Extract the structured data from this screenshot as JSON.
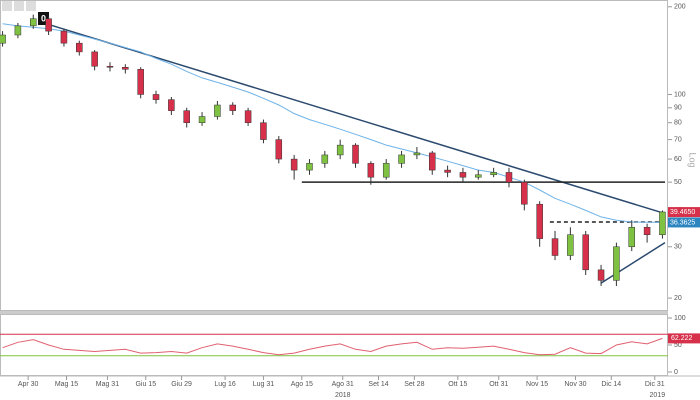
{
  "chart_data": {
    "type": "candlestick",
    "toolbar_badge": "0",
    "scale_label": "Log",
    "log_scale": true,
    "x": [
      "2018-04-20",
      "2018-04-26",
      "2018-05-02",
      "2018-05-08",
      "2018-05-14",
      "2018-05-20",
      "2018-05-26",
      "2018-06-01",
      "2018-06-07",
      "2018-06-13",
      "2018-06-19",
      "2018-06-25",
      "2018-07-01",
      "2018-07-07",
      "2018-07-13",
      "2018-07-19",
      "2018-07-25",
      "2018-07-31",
      "2018-08-06",
      "2018-08-12",
      "2018-08-18",
      "2018-08-24",
      "2018-08-30",
      "2018-09-05",
      "2018-09-11",
      "2018-09-17",
      "2018-09-23",
      "2018-09-29",
      "2018-10-05",
      "2018-10-11",
      "2018-10-17",
      "2018-10-23",
      "2018-10-29",
      "2018-11-04",
      "2018-11-10",
      "2018-11-16",
      "2018-11-22",
      "2018-11-28",
      "2018-12-04",
      "2018-12-10",
      "2018-12-16",
      "2018-12-22",
      "2018-12-28",
      "2019-01-03"
    ],
    "open": [
      150,
      160,
      172,
      182,
      165,
      150,
      140,
      125,
      124,
      122,
      100,
      96,
      88,
      80,
      84,
      92,
      88,
      80,
      70,
      60,
      55,
      58,
      62,
      67,
      58,
      52,
      58,
      62,
      63,
      55,
      54,
      52,
      53,
      54,
      50,
      42,
      32,
      28,
      33,
      25,
      23,
      30,
      35,
      33
    ],
    "high": [
      165,
      176,
      188,
      185,
      168,
      153,
      142,
      129,
      127,
      124,
      103,
      98,
      90,
      87,
      95,
      94,
      90,
      82,
      72,
      62,
      60,
      64,
      70,
      68,
      59,
      60,
      64,
      66,
      64,
      57,
      56,
      55,
      56,
      56,
      51,
      43,
      34,
      35,
      34,
      26,
      31,
      37,
      36,
      40
    ],
    "low": [
      146,
      156,
      168,
      160,
      146,
      136,
      121,
      120,
      118,
      97,
      93,
      85,
      77,
      78,
      82,
      85,
      78,
      68,
      58,
      51,
      53,
      56,
      60,
      56,
      49,
      51,
      56,
      60,
      53,
      52,
      50,
      51,
      52,
      48,
      40,
      30,
      27,
      27,
      24,
      22,
      22,
      29,
      31,
      32
    ],
    "close": [
      160,
      172,
      182,
      165,
      150,
      140,
      125,
      124,
      122,
      100,
      96,
      88,
      80,
      84,
      92,
      88,
      80,
      70,
      60,
      55,
      58,
      62,
      67,
      58,
      52,
      58,
      62,
      63,
      55,
      54,
      52,
      53,
      54,
      50,
      42,
      32,
      28,
      33,
      25,
      23,
      30,
      35,
      33,
      39.5
    ],
    "up_color": "#7fc241",
    "down_color": "#d6304a",
    "ma": {
      "color": "#6fb3e8",
      "values": [
        175,
        172,
        170,
        168,
        165,
        160,
        155,
        150,
        145,
        140,
        133,
        127,
        120,
        114,
        110,
        106,
        102,
        97,
        92,
        86,
        82,
        79,
        76,
        73,
        70,
        67,
        65,
        63,
        61,
        59,
        57,
        55,
        54,
        52,
        50,
        47,
        44,
        42,
        40,
        38,
        37,
        36.5,
        36.4,
        36.3625
      ]
    },
    "trendlines": [
      {
        "x": [
          "2018-05-07",
          "2019-01-04"
        ],
        "y": [
          175,
          39
        ],
        "color": "#2b4a6f",
        "dash": false
      },
      {
        "x": [
          "2018-08-15",
          "2019-01-04"
        ],
        "y": [
          50,
          50
        ],
        "color": "#222222",
        "dash": false
      },
      {
        "x": [
          "2018-11-20",
          "2019-01-04"
        ],
        "y": [
          36.5,
          36.5
        ],
        "color": "#222222",
        "dash": true
      },
      {
        "x": [
          "2018-12-10",
          "2019-01-04"
        ],
        "y": [
          22.5,
          31
        ],
        "color": "#2b4a6f",
        "dash": false
      }
    ],
    "price_tags": [
      {
        "value": 39.465,
        "label": "39.4650",
        "color": "#d6304a"
      },
      {
        "value": 36.3625,
        "label": "36.3625",
        "color": "#2e86c1"
      }
    ],
    "ylim": [
      18.2,
      211
    ],
    "yticks": [
      200,
      100,
      90,
      80,
      70,
      60,
      50,
      40,
      30,
      20
    ],
    "xlim": [
      "2018-04-19",
      "2019-01-04"
    ],
    "xticks": [
      {
        "value": "2018-04-30",
        "label": "Apr 30"
      },
      {
        "value": "2018-05-15",
        "label": "Mag 15"
      },
      {
        "value": "2018-05-31",
        "label": "Mag 31"
      },
      {
        "value": "2018-06-15",
        "label": "Giu 15"
      },
      {
        "value": "2018-06-29",
        "label": "Giu 29"
      },
      {
        "value": "2018-07-16",
        "label": "Lug 16"
      },
      {
        "value": "2018-07-31",
        "label": "Lug 31"
      },
      {
        "value": "2018-08-15",
        "label": "Ago 15"
      },
      {
        "value": "2018-08-31",
        "label": "Ago 31"
      },
      {
        "value": "2018-09-14",
        "label": "Set 14"
      },
      {
        "value": "2018-09-28",
        "label": "Set 28"
      },
      {
        "value": "2018-10-15",
        "label": "Ott 15"
      },
      {
        "value": "2018-10-31",
        "label": "Ott 31"
      },
      {
        "value": "2018-11-15",
        "label": "Nov 15"
      },
      {
        "value": "2018-11-30",
        "label": "Nov 30"
      },
      {
        "value": "2018-12-14",
        "label": "Dic 14"
      },
      {
        "value": "2018-12-31",
        "label": "Dic 31"
      }
    ],
    "year_labels": [
      {
        "value": "2018-08-31",
        "label": "2018"
      },
      {
        "value": "2019-01-01",
        "label": "2019"
      }
    ],
    "rsi": {
      "color": "#e06070",
      "values": [
        45,
        55,
        60,
        50,
        42,
        40,
        38,
        40,
        42,
        35,
        36,
        38,
        35,
        45,
        52,
        48,
        42,
        36,
        32,
        35,
        42,
        48,
        52,
        42,
        38,
        48,
        52,
        55,
        42,
        45,
        44,
        46,
        48,
        42,
        36,
        32,
        33,
        45,
        35,
        34,
        50,
        56,
        52,
        62.222
      ],
      "ylim": [
        0,
        100
      ],
      "yticks": [
        100,
        50,
        0
      ],
      "levels": [
        {
          "value": 70,
          "color": "#d6304a"
        },
        {
          "value": 30,
          "color": "#7fc241"
        }
      ],
      "last_label": {
        "value": 62.222,
        "label": "62.222",
        "color": "#d6304a"
      }
    }
  }
}
